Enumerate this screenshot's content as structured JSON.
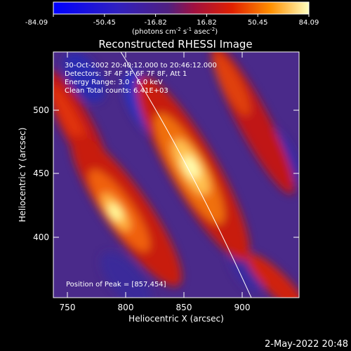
{
  "colorbar": {
    "tick_labels": [
      "-84.09",
      "-50.45",
      "-16.82",
      "16.82",
      "50.45",
      "84.09"
    ],
    "unit_label_prefix": "(photons cm",
    "unit_exp1": "-2",
    "unit_mid": " s",
    "unit_exp2": "-1",
    "unit_suffix": " asec",
    "unit_exp3": "-2",
    "unit_close": ")"
  },
  "plot": {
    "title": "Reconstructed RHESSI Image",
    "xlabel": "Heliocentric X (arcsec)",
    "ylabel": "Heliocentric Y (arcsec)",
    "x_ticks": [
      "750",
      "800",
      "850",
      "900"
    ],
    "y_ticks": [
      "400",
      "450",
      "500"
    ],
    "info_lines": [
      "30-Oct-2002 20:40:12.000 to 20:46:12.000",
      "Detectors: 3F 4F 5F 6F 7F 8F, Att 1",
      "Energy Range: 3.0 - 6.0 keV",
      "Clean     Total counts: 6.41E+03"
    ],
    "peak_label": "Position of Peak = [857,454]"
  },
  "footer": {
    "timestamp": "2-May-2022 20:48"
  },
  "colors": {
    "background": "#000000",
    "text": "#ffffff",
    "colormap_low": "#1010ff",
    "colormap_mid": "#5a2a86",
    "colormap_high": "#ffff80"
  }
}
